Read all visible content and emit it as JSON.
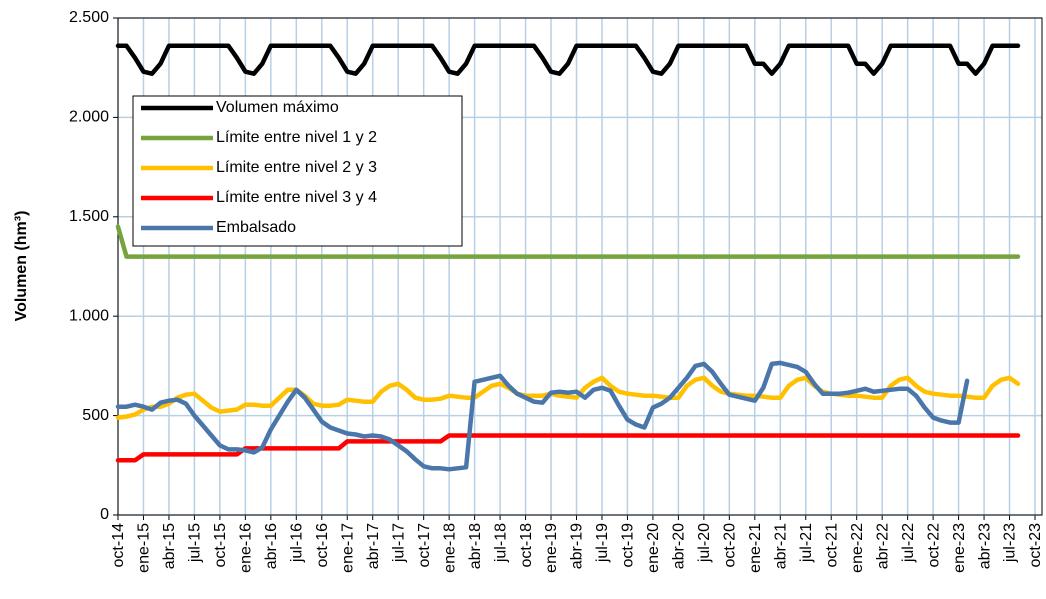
{
  "chart_data": {
    "type": "line",
    "y_label": "Volumen (hm³)",
    "categories": [
      "oct-14",
      null,
      null,
      "ene-15",
      null,
      null,
      "abr-15",
      null,
      null,
      "jul-15",
      null,
      null,
      "oct-15",
      null,
      null,
      "ene-16",
      null,
      null,
      "abr-16",
      null,
      null,
      "jul-16",
      null,
      null,
      "oct-16",
      null,
      null,
      "ene-17",
      null,
      null,
      "abr-17",
      null,
      null,
      "jul-17",
      null,
      null,
      "oct-17",
      null,
      null,
      "ene-18",
      null,
      null,
      "abr-18",
      null,
      null,
      "jul-18",
      null,
      null,
      "oct-18",
      null,
      null,
      "ene-19",
      null,
      null,
      "abr-19",
      null,
      null,
      "jul-19",
      null,
      null,
      "oct-19",
      null,
      null,
      "ene-20",
      null,
      null,
      "abr-20",
      null,
      null,
      "jul-20",
      null,
      null,
      "oct-20",
      null,
      null,
      "ene-21",
      null,
      null,
      "abr-21",
      null,
      null,
      "jul-21",
      null,
      null,
      "oct-21",
      null,
      null,
      "ene-22",
      null,
      null,
      "abr-22",
      null,
      null,
      "jul-22",
      null,
      null,
      "oct-22",
      null,
      null,
      "ene-23",
      null,
      null,
      "abr-23",
      null,
      null,
      "jul-23",
      null,
      null,
      "oct-23"
    ],
    "series": [
      {
        "name": "Volumen máximo",
        "color": "#000000",
        "values": [
          2360,
          2360,
          2300,
          2230,
          2220,
          2270,
          2360,
          2360,
          2360,
          2360,
          2360,
          2360,
          2360,
          2360,
          2300,
          2230,
          2220,
          2270,
          2360,
          2360,
          2360,
          2360,
          2360,
          2360,
          2360,
          2360,
          2300,
          2230,
          2220,
          2270,
          2360,
          2360,
          2360,
          2360,
          2360,
          2360,
          2360,
          2360,
          2300,
          2230,
          2220,
          2270,
          2360,
          2360,
          2360,
          2360,
          2360,
          2360,
          2360,
          2360,
          2300,
          2230,
          2220,
          2270,
          2360,
          2360,
          2360,
          2360,
          2360,
          2360,
          2360,
          2360,
          2300,
          2230,
          2220,
          2270,
          2360,
          2360,
          2360,
          2360,
          2360,
          2360,
          2360,
          2360,
          2360,
          2270,
          2270,
          2220,
          2270,
          2360,
          2360,
          2360,
          2360,
          2360,
          2360,
          2360,
          2360,
          2270,
          2270,
          2220,
          2270,
          2360,
          2360,
          2360,
          2360,
          2360,
          2360,
          2360,
          2360,
          2270,
          2270,
          2220,
          2270,
          2360,
          2360,
          2360,
          2360,
          null,
          null
        ]
      },
      {
        "name": "Límite entre nivel 1 y 2",
        "color": "#77a33f",
        "values": [
          1450,
          1300,
          1300,
          1300,
          1300,
          1300,
          1300,
          1300,
          1300,
          1300,
          1300,
          1300,
          1300,
          1300,
          1300,
          1300,
          1300,
          1300,
          1300,
          1300,
          1300,
          1300,
          1300,
          1300,
          1300,
          1300,
          1300,
          1300,
          1300,
          1300,
          1300,
          1300,
          1300,
          1300,
          1300,
          1300,
          1300,
          1300,
          1300,
          1300,
          1300,
          1300,
          1300,
          1300,
          1300,
          1300,
          1300,
          1300,
          1300,
          1300,
          1300,
          1300,
          1300,
          1300,
          1300,
          1300,
          1300,
          1300,
          1300,
          1300,
          1300,
          1300,
          1300,
          1300,
          1300,
          1300,
          1300,
          1300,
          1300,
          1300,
          1300,
          1300,
          1300,
          1300,
          1300,
          1300,
          1300,
          1300,
          1300,
          1300,
          1300,
          1300,
          1300,
          1300,
          1300,
          1300,
          1300,
          1300,
          1300,
          1300,
          1300,
          1300,
          1300,
          1300,
          1300,
          1300,
          1300,
          1300,
          1300,
          1300,
          1300,
          1300,
          1300,
          1300,
          1300,
          1300,
          1300,
          null,
          null
        ]
      },
      {
        "name": "Límite entre nivel 2 y 3",
        "color": "#ffc000",
        "values": [
          490,
          495,
          505,
          530,
          545,
          545,
          560,
          590,
          605,
          610,
          575,
          540,
          520,
          525,
          530,
          555,
          555,
          550,
          550,
          590,
          630,
          630,
          600,
          560,
          550,
          550,
          555,
          580,
          575,
          570,
          570,
          620,
          650,
          660,
          630,
          590,
          580,
          580,
          585,
          600,
          595,
          590,
          590,
          620,
          650,
          660,
          640,
          610,
          600,
          600,
          600,
          610,
          600,
          595,
          590,
          640,
          670,
          690,
          650,
          620,
          610,
          605,
          600,
          600,
          595,
          590,
          590,
          650,
          680,
          690,
          650,
          620,
          610,
          605,
          600,
          600,
          595,
          590,
          590,
          650,
          680,
          690,
          650,
          620,
          610,
          605,
          600,
          600,
          595,
          590,
          590,
          650,
          680,
          690,
          650,
          620,
          610,
          605,
          600,
          600,
          595,
          590,
          590,
          650,
          680,
          690,
          660,
          null,
          null
        ]
      },
      {
        "name": "Límite entre nivel 3 y 4",
        "color": "#ff0000",
        "values": [
          275,
          275,
          275,
          305,
          305,
          305,
          305,
          305,
          305,
          305,
          305,
          305,
          305,
          305,
          305,
          335,
          335,
          335,
          335,
          335,
          335,
          335,
          335,
          335,
          335,
          335,
          335,
          370,
          370,
          370,
          370,
          370,
          370,
          370,
          370,
          370,
          370,
          370,
          370,
          400,
          400,
          400,
          400,
          400,
          400,
          400,
          400,
          400,
          400,
          400,
          400,
          400,
          400,
          400,
          400,
          400,
          400,
          400,
          400,
          400,
          400,
          400,
          400,
          400,
          400,
          400,
          400,
          400,
          400,
          400,
          400,
          400,
          400,
          400,
          400,
          400,
          400,
          400,
          400,
          400,
          400,
          400,
          400,
          400,
          400,
          400,
          400,
          400,
          400,
          400,
          400,
          400,
          400,
          400,
          400,
          400,
          400,
          400,
          400,
          400,
          400,
          400,
          400,
          400,
          400,
          400,
          400,
          null,
          null
        ]
      },
      {
        "name": "Embalsado",
        "color": "#4a76aa",
        "values": [
          545,
          545,
          555,
          545,
          530,
          565,
          575,
          580,
          560,
          500,
          450,
          400,
          350,
          330,
          330,
          325,
          315,
          340,
          430,
          500,
          570,
          630,
          590,
          530,
          470,
          440,
          425,
          410,
          405,
          395,
          400,
          395,
          380,
          350,
          320,
          280,
          245,
          235,
          235,
          230,
          235,
          240,
          670,
          680,
          690,
          700,
          650,
          610,
          590,
          570,
          565,
          615,
          620,
          615,
          620,
          590,
          630,
          640,
          625,
          550,
          480,
          455,
          440,
          540,
          560,
          590,
          640,
          690,
          750,
          760,
          720,
          660,
          605,
          595,
          585,
          575,
          640,
          760,
          765,
          755,
          745,
          720,
          660,
          610,
          610,
          610,
          615,
          625,
          635,
          620,
          625,
          630,
          635,
          635,
          600,
          540,
          490,
          475,
          465,
          465,
          675,
          null,
          null,
          null,
          null,
          null,
          null,
          null,
          null
        ]
      }
    ],
    "ylim": [
      0,
      2500
    ],
    "yticks": [
      0,
      500,
      {
        "value": 1000,
        "label": "1.000"
      },
      {
        "value": 1500,
        "label": "1.500"
      },
      {
        "value": 2000,
        "label": "2.000"
      },
      {
        "value": 2500,
        "label": "2.500"
      }
    ],
    "grid": true,
    "legend": "upper left"
  }
}
